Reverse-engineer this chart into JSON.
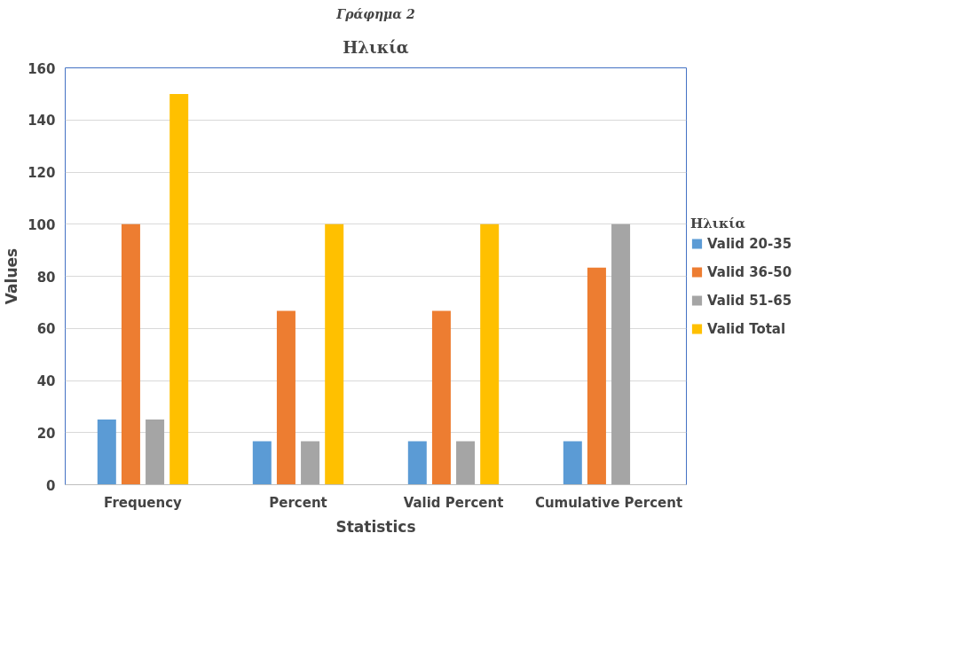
{
  "chart_data": {
    "type": "bar",
    "title": "Ηλικία",
    "xlabel": "Statistics",
    "ylabel": "Values",
    "legend_title": "Ηλικία",
    "annotations": [
      "Γράφημα 2"
    ],
    "categories": [
      "Frequency",
      "Percent",
      "Valid Percent",
      "Cumulative Percent"
    ],
    "series": [
      {
        "name": "Valid 20-35",
        "color": "#5b9bd5",
        "values": [
          25,
          16.7,
          16.7,
          16.7
        ]
      },
      {
        "name": "Valid 36-50",
        "color": "#ed7d31",
        "values": [
          100,
          66.7,
          66.7,
          83.3
        ]
      },
      {
        "name": "Valid 51-65",
        "color": "#a5a5a5",
        "values": [
          25,
          16.7,
          16.7,
          100
        ]
      },
      {
        "name": "Valid Total",
        "color": "#ffc000",
        "values": [
          150,
          100,
          100,
          null
        ]
      }
    ],
    "ylim": [
      0,
      160
    ],
    "yticks": [
      0,
      20,
      40,
      60,
      80,
      100,
      120,
      140,
      160
    ],
    "grid": "y",
    "legend": "right"
  }
}
